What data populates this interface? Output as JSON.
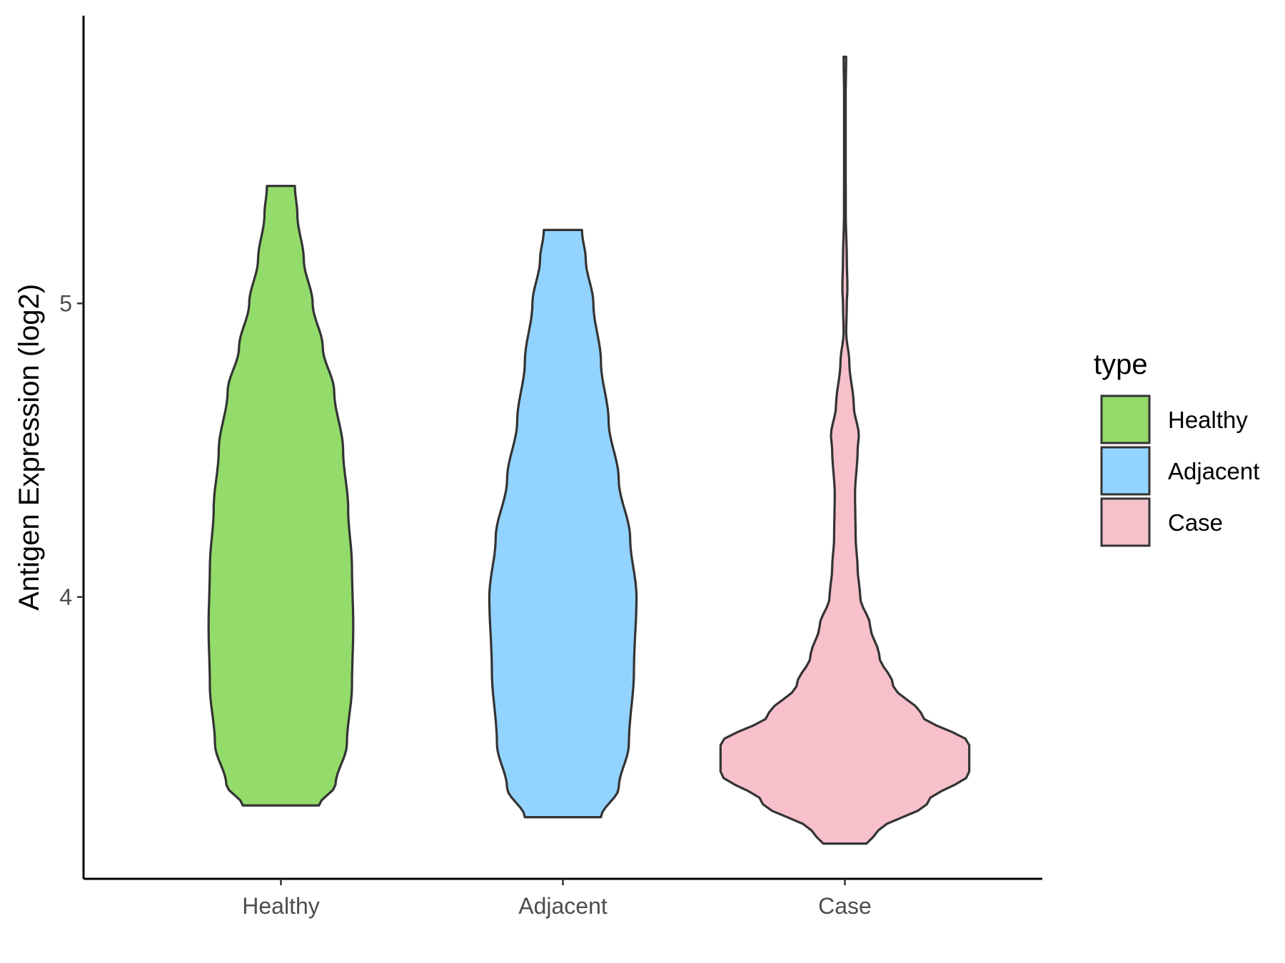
{
  "chart_data": {
    "type": "violin",
    "title": "",
    "xlabel": "",
    "ylabel": "Antigen Expression (log2)",
    "categories": [
      "Healthy",
      "Adjacent",
      "Case"
    ],
    "y_ticks": [
      4,
      5
    ],
    "ylim": [
      3.04,
      5.98
    ],
    "grid": false,
    "legend": {
      "title": "type",
      "position": "right",
      "entries": [
        "Healthy",
        "Adjacent",
        "Case"
      ]
    },
    "colors": {
      "Healthy": "#93DB6A",
      "Adjacent": "#93D3FF",
      "Case": "#F7C0CB",
      "outline": "#333333"
    },
    "series": [
      {
        "category": "Healthy",
        "min": 3.29,
        "max": 5.4,
        "density": [
          [
            3.29,
            0.3
          ],
          [
            3.36,
            0.43
          ],
          [
            3.5,
            0.52
          ],
          [
            3.7,
            0.56
          ],
          [
            3.9,
            0.57
          ],
          [
            4.1,
            0.56
          ],
          [
            4.3,
            0.53
          ],
          [
            4.5,
            0.49
          ],
          [
            4.7,
            0.42
          ],
          [
            4.85,
            0.33
          ],
          [
            5.0,
            0.25
          ],
          [
            5.15,
            0.18
          ],
          [
            5.3,
            0.13
          ],
          [
            5.4,
            0.11
          ]
        ]
      },
      {
        "category": "Adjacent",
        "min": 3.25,
        "max": 5.25,
        "density": [
          [
            3.25,
            0.3
          ],
          [
            3.35,
            0.44
          ],
          [
            3.5,
            0.52
          ],
          [
            3.75,
            0.56
          ],
          [
            4.0,
            0.58
          ],
          [
            4.2,
            0.53
          ],
          [
            4.4,
            0.44
          ],
          [
            4.6,
            0.36
          ],
          [
            4.8,
            0.3
          ],
          [
            5.0,
            0.24
          ],
          [
            5.15,
            0.18
          ],
          [
            5.25,
            0.15
          ]
        ]
      },
      {
        "category": "Case",
        "min": 3.16,
        "max": 5.84,
        "density": [
          [
            3.16,
            0.17
          ],
          [
            3.2,
            0.26
          ],
          [
            3.3,
            0.65
          ],
          [
            3.4,
            0.98
          ],
          [
            3.5,
            0.98
          ],
          [
            3.6,
            0.6
          ],
          [
            3.7,
            0.38
          ],
          [
            3.8,
            0.27
          ],
          [
            3.9,
            0.2
          ],
          [
            4.0,
            0.12
          ],
          [
            4.1,
            0.1
          ],
          [
            4.2,
            0.085
          ],
          [
            4.35,
            0.08
          ],
          [
            4.5,
            0.1
          ],
          [
            4.55,
            0.11
          ],
          [
            4.65,
            0.07
          ],
          [
            4.8,
            0.035
          ],
          [
            4.9,
            0.01
          ],
          [
            5.0,
            0.015
          ],
          [
            5.05,
            0.02
          ],
          [
            5.15,
            0.015
          ],
          [
            5.3,
            0.007
          ],
          [
            5.5,
            0.006
          ],
          [
            5.7,
            0.006
          ],
          [
            5.84,
            0.01
          ]
        ]
      }
    ]
  }
}
